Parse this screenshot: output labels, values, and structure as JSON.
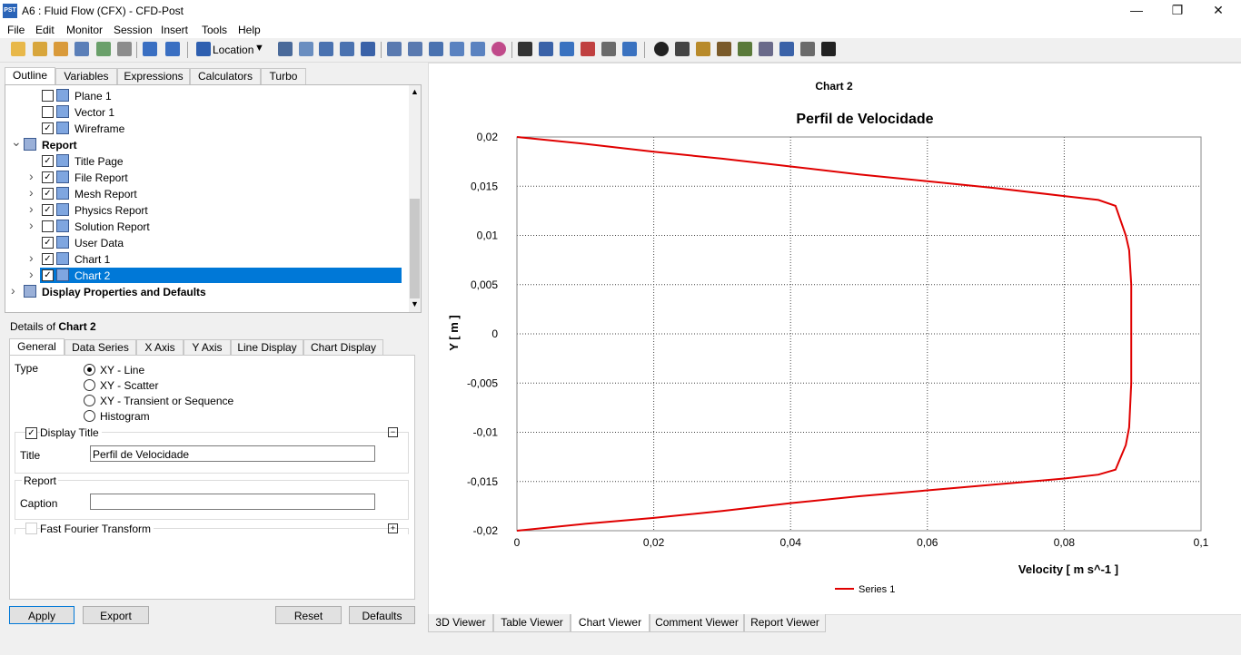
{
  "window": {
    "title": "A6 : Fluid Flow (CFX) - CFD-Post",
    "app_icon_text": "PST",
    "controls": [
      "—",
      "❐",
      "✕"
    ]
  },
  "menu": [
    "File",
    "Edit",
    "Monitor",
    "Session",
    "Insert",
    "Tools",
    "Help"
  ],
  "toolbar": {
    "location_label": "Location"
  },
  "left_tabs": [
    "Outline",
    "Variables",
    "Expressions",
    "Calculators",
    "Turbo"
  ],
  "tree": [
    {
      "label": "Plane 1",
      "checked": false,
      "bold": false,
      "expander": false,
      "indent": 2
    },
    {
      "label": "Vector 1",
      "checked": false,
      "bold": false,
      "expander": false,
      "indent": 2
    },
    {
      "label": "Wireframe",
      "checked": true,
      "bold": false,
      "expander": false,
      "indent": 2
    },
    {
      "label": "Report",
      "checked": null,
      "bold": true,
      "expander": "open",
      "indent": 1
    },
    {
      "label": "Title Page",
      "checked": true,
      "bold": false,
      "expander": false,
      "indent": 2
    },
    {
      "label": "File Report",
      "checked": true,
      "bold": false,
      "expander": "closed",
      "indent": 2
    },
    {
      "label": "Mesh Report",
      "checked": true,
      "bold": false,
      "expander": "closed",
      "indent": 2
    },
    {
      "label": "Physics Report",
      "checked": true,
      "bold": false,
      "expander": "closed",
      "indent": 2
    },
    {
      "label": "Solution Report",
      "checked": false,
      "bold": false,
      "expander": "closed",
      "indent": 2
    },
    {
      "label": "User Data",
      "checked": true,
      "bold": false,
      "expander": false,
      "indent": 2
    },
    {
      "label": "Chart 1",
      "checked": true,
      "bold": false,
      "expander": "closed",
      "indent": 2
    },
    {
      "label": "Chart 2",
      "checked": true,
      "bold": false,
      "expander": "closed",
      "indent": 2,
      "selected": true
    },
    {
      "label": "Display Properties and Defaults",
      "checked": null,
      "bold": true,
      "expander": "closed",
      "indent": 1
    }
  ],
  "details": {
    "prefix": "Details of ",
    "object": "Chart 2",
    "tabs": [
      "General",
      "Data Series",
      "X Axis",
      "Y Axis",
      "Line Display",
      "Chart Display"
    ],
    "type_label": "Type",
    "type_options": [
      "XY - Line",
      "XY - Scatter",
      "XY - Transient or Sequence",
      "Histogram"
    ],
    "type_selected": 0,
    "display_title_label": "Display Title",
    "title_label": "Title",
    "title_value": "Perfil de Velocidade",
    "report_label": "Report",
    "caption_label": "Caption",
    "caption_value": "",
    "fft_label": "Fast Fourier Transform",
    "buttons": {
      "apply": "Apply",
      "export": "Export",
      "reset": "Reset",
      "defaults": "Defaults"
    }
  },
  "viewer": {
    "chart_name": "Chart 2",
    "tabs": [
      "3D Viewer",
      "Table Viewer",
      "Chart Viewer",
      "Comment Viewer",
      "Report Viewer"
    ],
    "active_tab": 2
  },
  "chart_data": {
    "type": "line",
    "title": "Perfil de Velocidade",
    "xlabel": "Velocity [ m s^-1 ]",
    "ylabel": "Y [ m ]",
    "xlim": [
      0,
      0.1
    ],
    "ylim": [
      -0.02,
      0.02
    ],
    "xticks": [
      "0",
      "0,02",
      "0,04",
      "0,06",
      "0,08",
      "0,1"
    ],
    "yticks": [
      "0,02",
      "0,015",
      "0,01",
      "0,005",
      "0",
      "-0,005",
      "-0,01",
      "-0,015",
      "-0,02"
    ],
    "grid": true,
    "legend": "bottom-center",
    "series": [
      {
        "name": "Series 1",
        "color": "#e00000",
        "x": [
          0,
          0.01,
          0.02,
          0.03,
          0.04,
          0.05,
          0.06,
          0.07,
          0.08,
          0.085,
          0.0875,
          0.089,
          0.0895,
          0.0898,
          0.0898,
          0.0898,
          0.0895,
          0.089,
          0.0875,
          0.085,
          0.08,
          0.07,
          0.06,
          0.05,
          0.04,
          0.03,
          0.02,
          0.01,
          0
        ],
        "y": [
          0.02,
          0.0193,
          0.0185,
          0.0178,
          0.017,
          0.0162,
          0.0155,
          0.0148,
          0.014,
          0.0136,
          0.013,
          0.01,
          0.0085,
          0.005,
          0,
          -0.005,
          -0.0095,
          -0.0113,
          -0.0138,
          -0.0143,
          -0.0147,
          -0.0153,
          -0.0159,
          -0.0165,
          -0.0172,
          -0.018,
          -0.0187,
          -0.0193,
          -0.02
        ]
      }
    ]
  }
}
